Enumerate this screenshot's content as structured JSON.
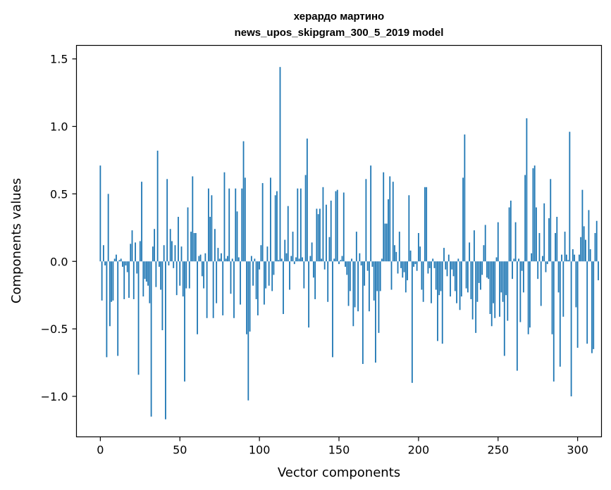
{
  "chart_data": {
    "type": "bar",
    "title_line1": "херардо мартино",
    "title_line2": "news_upos_skipgram_300_5_2019 model",
    "xlabel": "Vector components",
    "ylabel": "Components values",
    "xlim": [
      -15,
      315
    ],
    "ylim": [
      -1.3,
      1.6
    ],
    "xticks": [
      0,
      50,
      100,
      150,
      200,
      250,
      300
    ],
    "xtick_labels": [
      "0",
      "50",
      "100",
      "150",
      "200",
      "250",
      "300"
    ],
    "yticks": [
      -1.0,
      -0.5,
      0.0,
      0.5,
      1.0,
      1.5
    ],
    "ytick_labels": [
      "−1.0",
      "−0.5",
      "0.0",
      "0.5",
      "1.0",
      "1.5"
    ],
    "bar_color": "#1f77b4",
    "values": [
      0.71,
      -0.29,
      0.12,
      -0.03,
      -0.71,
      0.5,
      -0.48,
      -0.3,
      -0.29,
      0.02,
      0.05,
      -0.7,
      0.01,
      0.02,
      -0.04,
      -0.28,
      -0.03,
      -0.08,
      -0.27,
      0.13,
      0.23,
      -0.28,
      0.14,
      -0.09,
      -0.84,
      0.15,
      0.59,
      -0.26,
      -0.13,
      -0.15,
      -0.18,
      -0.31,
      -1.15,
      0.11,
      0.24,
      -0.19,
      0.82,
      -0.04,
      -0.21,
      -0.51,
      0.12,
      -1.17,
      0.61,
      -0.03,
      0.24,
      0.15,
      -0.05,
      0.12,
      -0.25,
      0.33,
      -0.18,
      0.11,
      -0.26,
      -0.89,
      -0.2,
      0.4,
      -0.2,
      0.22,
      0.63,
      0.21,
      0.21,
      -0.54,
      0.04,
      0.05,
      -0.11,
      -0.2,
      0.06,
      -0.42,
      0.54,
      0.33,
      0.49,
      -0.42,
      0.24,
      -0.31,
      0.1,
      0.02,
      0.06,
      -0.4,
      0.66,
      0.02,
      0.04,
      0.54,
      -0.24,
      0.02,
      -0.42,
      0.54,
      0.37,
      0.03,
      -0.32,
      0.54,
      0.89,
      0.62,
      -0.54,
      -1.03,
      -0.52,
      0.04,
      -0.18,
      0.02,
      -0.28,
      -0.4,
      -0.06,
      0.12,
      0.58,
      -0.32,
      -0.2,
      0.11,
      -0.18,
      0.62,
      -0.22,
      -0.1,
      0.49,
      0.52,
      0.01,
      1.44,
      0.02,
      -0.39,
      0.16,
      0.06,
      0.41,
      -0.21,
      0.04,
      0.22,
      -0.02,
      0.03,
      0.54,
      0.02,
      0.54,
      0.03,
      -0.2,
      0.64,
      0.91,
      -0.49,
      0.04,
      0.14,
      -0.12,
      -0.28,
      0.39,
      0.35,
      0.39,
      0.02,
      0.55,
      -0.06,
      0.42,
      -0.3,
      0.18,
      0.45,
      -0.71,
      0.02,
      0.52,
      0.53,
      -0.02,
      0.01,
      0.04,
      0.51,
      -0.04,
      -0.1,
      -0.33,
      -0.22,
      0.02,
      -0.48,
      -0.34,
      0.22,
      -0.37,
      0.06,
      -0.03,
      -0.76,
      -0.18,
      0.61,
      -0.07,
      -0.37,
      0.71,
      -0.04,
      -0.29,
      -0.75,
      -0.22,
      -0.53,
      -0.22,
      0.02,
      0.66,
      0.28,
      0.28,
      0.46,
      0.63,
      -0.21,
      0.59,
      0.12,
      0.07,
      -0.09,
      0.22,
      -0.05,
      -0.12,
      -0.08,
      -0.23,
      -0.14,
      0.49,
      0.08,
      -0.9,
      -0.04,
      -0.02,
      -0.07,
      0.21,
      0.11,
      -0.21,
      -0.3,
      0.55,
      0.55,
      -0.09,
      -0.05,
      -0.31,
      0.02,
      -0.05,
      -0.21,
      -0.59,
      -0.25,
      -0.22,
      -0.61,
      0.1,
      -0.06,
      -0.11,
      0.05,
      -0.26,
      -0.06,
      -0.11,
      -0.22,
      -0.31,
      0.02,
      -0.36,
      -0.26,
      0.62,
      0.94,
      -0.2,
      -0.23,
      0.14,
      -0.28,
      -0.43,
      0.23,
      -0.53,
      -0.3,
      -0.16,
      -0.21,
      -0.1,
      0.12,
      0.27,
      -0.12,
      -0.13,
      -0.39,
      -0.48,
      -0.31,
      -0.42,
      0.03,
      0.29,
      -0.41,
      -0.23,
      -0.3,
      -0.7,
      -0.25,
      -0.44,
      0.4,
      0.45,
      -0.13,
      0.02,
      0.29,
      -0.81,
      0.02,
      -0.45,
      -0.07,
      -0.23,
      0.64,
      1.06,
      -0.54,
      -0.49,
      0.06,
      0.69,
      0.71,
      0.4,
      -0.13,
      0.21,
      -0.33,
      0.04,
      0.43,
      -0.08,
      -0.02,
      0.32,
      0.61,
      -0.54,
      -0.89,
      0.21,
      0.33,
      -0.23,
      -0.78,
      0.05,
      -0.41,
      0.22,
      0.05,
      0.01,
      0.96,
      -1.0,
      0.09,
      0.05,
      -0.34,
      -0.64,
      0.05,
      0.18,
      0.53,
      0.26,
      0.16,
      -0.61,
      0.38,
      0.09,
      -0.68,
      -0.65,
      0.21,
      0.3,
      -0.14
    ]
  }
}
